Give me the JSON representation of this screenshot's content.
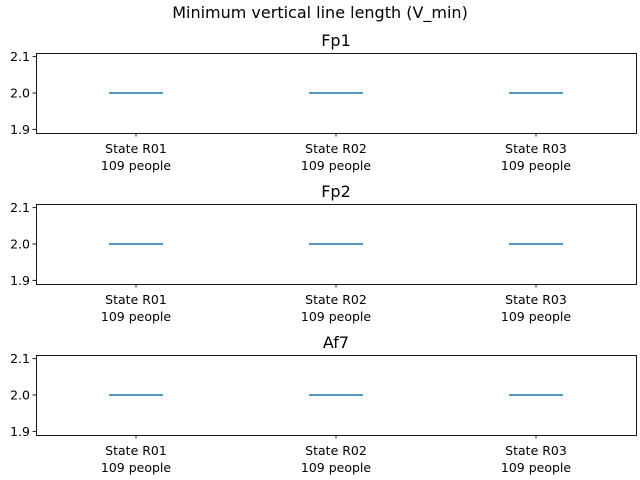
{
  "chart_data": {
    "type": "box",
    "title": "Minimum vertical line length (V_min)",
    "categories": [
      {
        "label": "State R01",
        "sublabel": "109 people"
      },
      {
        "label": "State R02",
        "sublabel": "109 people"
      },
      {
        "label": "State R03",
        "sublabel": "109 people"
      }
    ],
    "yticks": [
      "1.9",
      "2.0",
      "2.1"
    ],
    "ylim": [
      1.89,
      2.11
    ],
    "line_color": "#1f77b4",
    "panels": [
      {
        "title": "Fp1",
        "values": [
          2.0,
          2.0,
          2.0
        ]
      },
      {
        "title": "Fp2",
        "values": [
          2.0,
          2.0,
          2.0
        ]
      },
      {
        "title": "Af7",
        "values": [
          2.0,
          2.0,
          2.0
        ]
      }
    ]
  }
}
